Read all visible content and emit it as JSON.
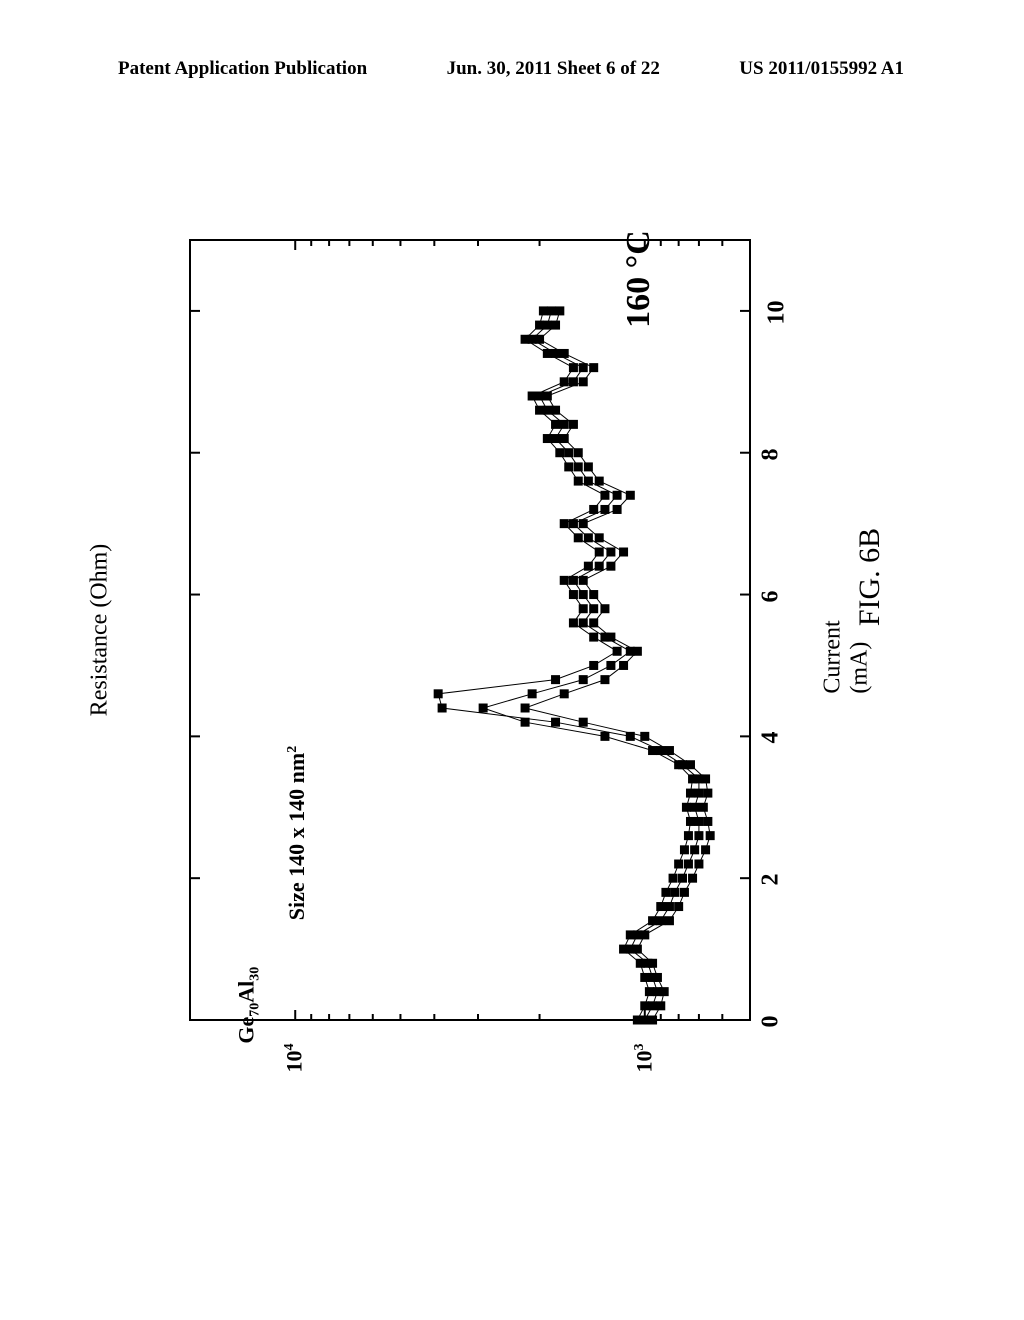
{
  "header": {
    "left": "Patent Application Publication",
    "center": "Jun. 30, 2011  Sheet 6 of 22",
    "right": "US 2011/0155992 A1"
  },
  "figure_label": "FIG. 6B",
  "chart": {
    "type": "scatter",
    "x_axis": {
      "label": "Current (mA)",
      "min": 0,
      "max": 11,
      "ticks": [
        0,
        2,
        4,
        6,
        8,
        10
      ],
      "tick_labels": [
        "0",
        "2",
        "4",
        "6",
        "8",
        "10"
      ],
      "fontsize": 24
    },
    "y_axis": {
      "label": "Resistance (Ohm)",
      "scale": "log",
      "min": 500,
      "max": 20000,
      "ticks": [
        1000,
        10000
      ],
      "tick_labels_html": [
        "10<sup>3</sup>",
        "10<sup>4</sup>"
      ],
      "fontsize": 22,
      "minor_ticks": [
        600,
        700,
        800,
        900,
        2000,
        3000,
        4000,
        5000,
        6000,
        7000,
        8000,
        9000,
        20000
      ]
    },
    "annotations": {
      "temperature": "160 °C",
      "composition_html": "Ge<sub>70</sub>Al<sub>30</sub>",
      "size_html": "Size  140 x 140 nm<sup>2</sup>"
    },
    "colors": {
      "marker": "#000000",
      "line": "#000000",
      "background": "#ffffff",
      "axis": "#000000"
    },
    "marker": {
      "shape": "square",
      "size": 9
    },
    "line_width": 1,
    "series": [
      {
        "name": "run1",
        "points": [
          [
            0.0,
            1000
          ],
          [
            0.2,
            950
          ],
          [
            0.4,
            920
          ],
          [
            0.6,
            950
          ],
          [
            0.8,
            980
          ],
          [
            1.0,
            1100
          ],
          [
            1.2,
            1050
          ],
          [
            1.4,
            900
          ],
          [
            1.6,
            850
          ],
          [
            1.8,
            820
          ],
          [
            2.0,
            780
          ],
          [
            2.2,
            750
          ],
          [
            2.4,
            720
          ],
          [
            2.6,
            700
          ],
          [
            2.8,
            700
          ],
          [
            3.0,
            720
          ],
          [
            3.2,
            700
          ],
          [
            3.4,
            700
          ],
          [
            3.6,
            780
          ],
          [
            3.8,
            900
          ],
          [
            4.0,
            1100
          ],
          [
            4.2,
            1800
          ],
          [
            4.4,
            3800
          ],
          [
            4.6,
            3900
          ],
          [
            4.8,
            1800
          ],
          [
            5.0,
            1400
          ],
          [
            5.2,
            1200
          ],
          [
            5.4,
            1400
          ],
          [
            5.6,
            1600
          ],
          [
            5.8,
            1500
          ],
          [
            6.0,
            1600
          ],
          [
            6.2,
            1700
          ],
          [
            6.4,
            1450
          ],
          [
            6.6,
            1350
          ],
          [
            6.8,
            1550
          ],
          [
            7.0,
            1700
          ],
          [
            7.2,
            1400
          ],
          [
            7.4,
            1300
          ],
          [
            7.6,
            1550
          ],
          [
            7.8,
            1650
          ],
          [
            8.0,
            1750
          ],
          [
            8.2,
            1900
          ],
          [
            8.4,
            1800
          ],
          [
            8.6,
            2000
          ],
          [
            8.8,
            2100
          ],
          [
            9.0,
            1700
          ],
          [
            9.2,
            1600
          ],
          [
            9.4,
            1900
          ],
          [
            9.6,
            2200
          ],
          [
            9.8,
            2000
          ],
          [
            10.0,
            1950
          ]
        ]
      },
      {
        "name": "run2",
        "points": [
          [
            0.0,
            1050
          ],
          [
            0.2,
            1000
          ],
          [
            0.4,
            970
          ],
          [
            0.6,
            1000
          ],
          [
            0.8,
            1030
          ],
          [
            1.0,
            1150
          ],
          [
            1.2,
            1100
          ],
          [
            1.4,
            950
          ],
          [
            1.6,
            900
          ],
          [
            1.8,
            870
          ],
          [
            2.0,
            830
          ],
          [
            2.2,
            800
          ],
          [
            2.4,
            770
          ],
          [
            2.6,
            750
          ],
          [
            2.8,
            740
          ],
          [
            3.0,
            760
          ],
          [
            3.2,
            740
          ],
          [
            3.4,
            730
          ],
          [
            3.6,
            800
          ],
          [
            3.8,
            950
          ],
          [
            4.0,
            1300
          ],
          [
            4.2,
            2200
          ],
          [
            4.4,
            2900
          ],
          [
            4.6,
            2100
          ],
          [
            4.8,
            1500
          ],
          [
            5.0,
            1250
          ],
          [
            5.2,
            1100
          ],
          [
            5.4,
            1300
          ],
          [
            5.6,
            1500
          ],
          [
            5.8,
            1400
          ],
          [
            6.0,
            1500
          ],
          [
            6.2,
            1600
          ],
          [
            6.4,
            1350
          ],
          [
            6.6,
            1250
          ],
          [
            6.8,
            1450
          ],
          [
            7.0,
            1600
          ],
          [
            7.2,
            1300
          ],
          [
            7.4,
            1200
          ],
          [
            7.6,
            1450
          ],
          [
            7.8,
            1550
          ],
          [
            8.0,
            1650
          ],
          [
            8.2,
            1800
          ],
          [
            8.4,
            1700
          ],
          [
            8.6,
            1900
          ],
          [
            8.8,
            2000
          ],
          [
            9.0,
            1600
          ],
          [
            9.2,
            1500
          ],
          [
            9.4,
            1800
          ],
          [
            9.6,
            2100
          ],
          [
            9.8,
            1900
          ],
          [
            10.0,
            1850
          ]
        ]
      },
      {
        "name": "run3",
        "points": [
          [
            0.0,
            950
          ],
          [
            0.2,
            900
          ],
          [
            0.4,
            880
          ],
          [
            0.6,
            920
          ],
          [
            0.8,
            950
          ],
          [
            1.0,
            1050
          ],
          [
            1.2,
            1000
          ],
          [
            1.4,
            850
          ],
          [
            1.6,
            800
          ],
          [
            1.8,
            770
          ],
          [
            2.0,
            730
          ],
          [
            2.2,
            700
          ],
          [
            2.4,
            670
          ],
          [
            2.6,
            650
          ],
          [
            2.8,
            660
          ],
          [
            3.0,
            680
          ],
          [
            3.2,
            660
          ],
          [
            3.4,
            670
          ],
          [
            3.6,
            740
          ],
          [
            3.8,
            850
          ],
          [
            4.0,
            1000
          ],
          [
            4.2,
            1500
          ],
          [
            4.4,
            2200
          ],
          [
            4.6,
            1700
          ],
          [
            4.8,
            1300
          ],
          [
            5.0,
            1150
          ],
          [
            5.2,
            1050
          ],
          [
            5.4,
            1250
          ],
          [
            5.6,
            1400
          ],
          [
            5.8,
            1300
          ],
          [
            6.0,
            1400
          ],
          [
            6.2,
            1500
          ],
          [
            6.4,
            1250
          ],
          [
            6.6,
            1150
          ],
          [
            6.8,
            1350
          ],
          [
            7.0,
            1500
          ],
          [
            7.2,
            1200
          ],
          [
            7.4,
            1100
          ],
          [
            7.6,
            1350
          ],
          [
            7.8,
            1450
          ],
          [
            8.0,
            1550
          ],
          [
            8.2,
            1700
          ],
          [
            8.4,
            1600
          ],
          [
            8.6,
            1800
          ],
          [
            8.8,
            1900
          ],
          [
            9.0,
            1500
          ],
          [
            9.2,
            1400
          ],
          [
            9.4,
            1700
          ],
          [
            9.6,
            2000
          ],
          [
            9.8,
            1800
          ],
          [
            10.0,
            1750
          ]
        ]
      }
    ]
  }
}
